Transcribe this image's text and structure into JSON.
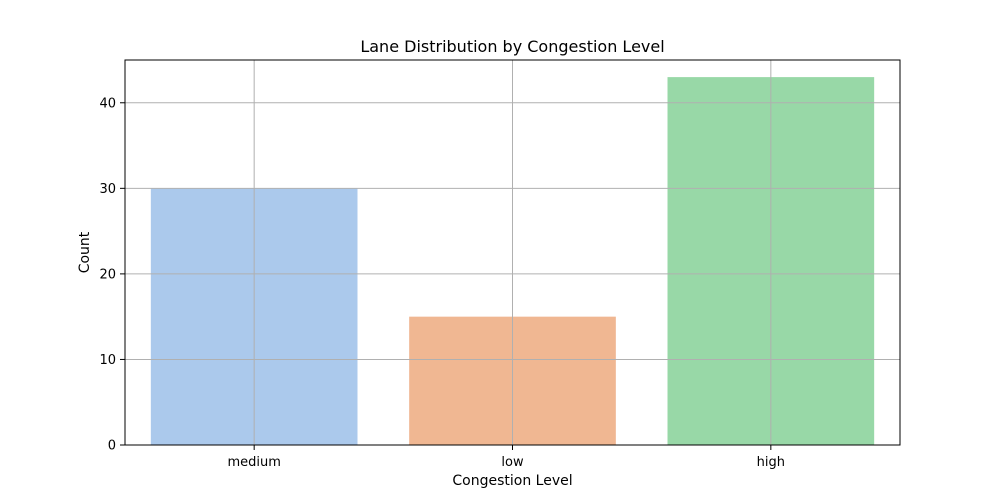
{
  "chart_data": {
    "type": "bar",
    "title": "Lane Distribution by Congestion Level",
    "xlabel": "Congestion Level",
    "ylabel": "Count",
    "categories": [
      "medium",
      "low",
      "high"
    ],
    "values": [
      30,
      15,
      43
    ],
    "colors": [
      "#abc9ec",
      "#f0b792",
      "#98d8a7"
    ],
    "ylim": [
      0,
      45
    ],
    "yticks": [
      0,
      10,
      20,
      30,
      40
    ],
    "grid": true,
    "legend": "none"
  }
}
